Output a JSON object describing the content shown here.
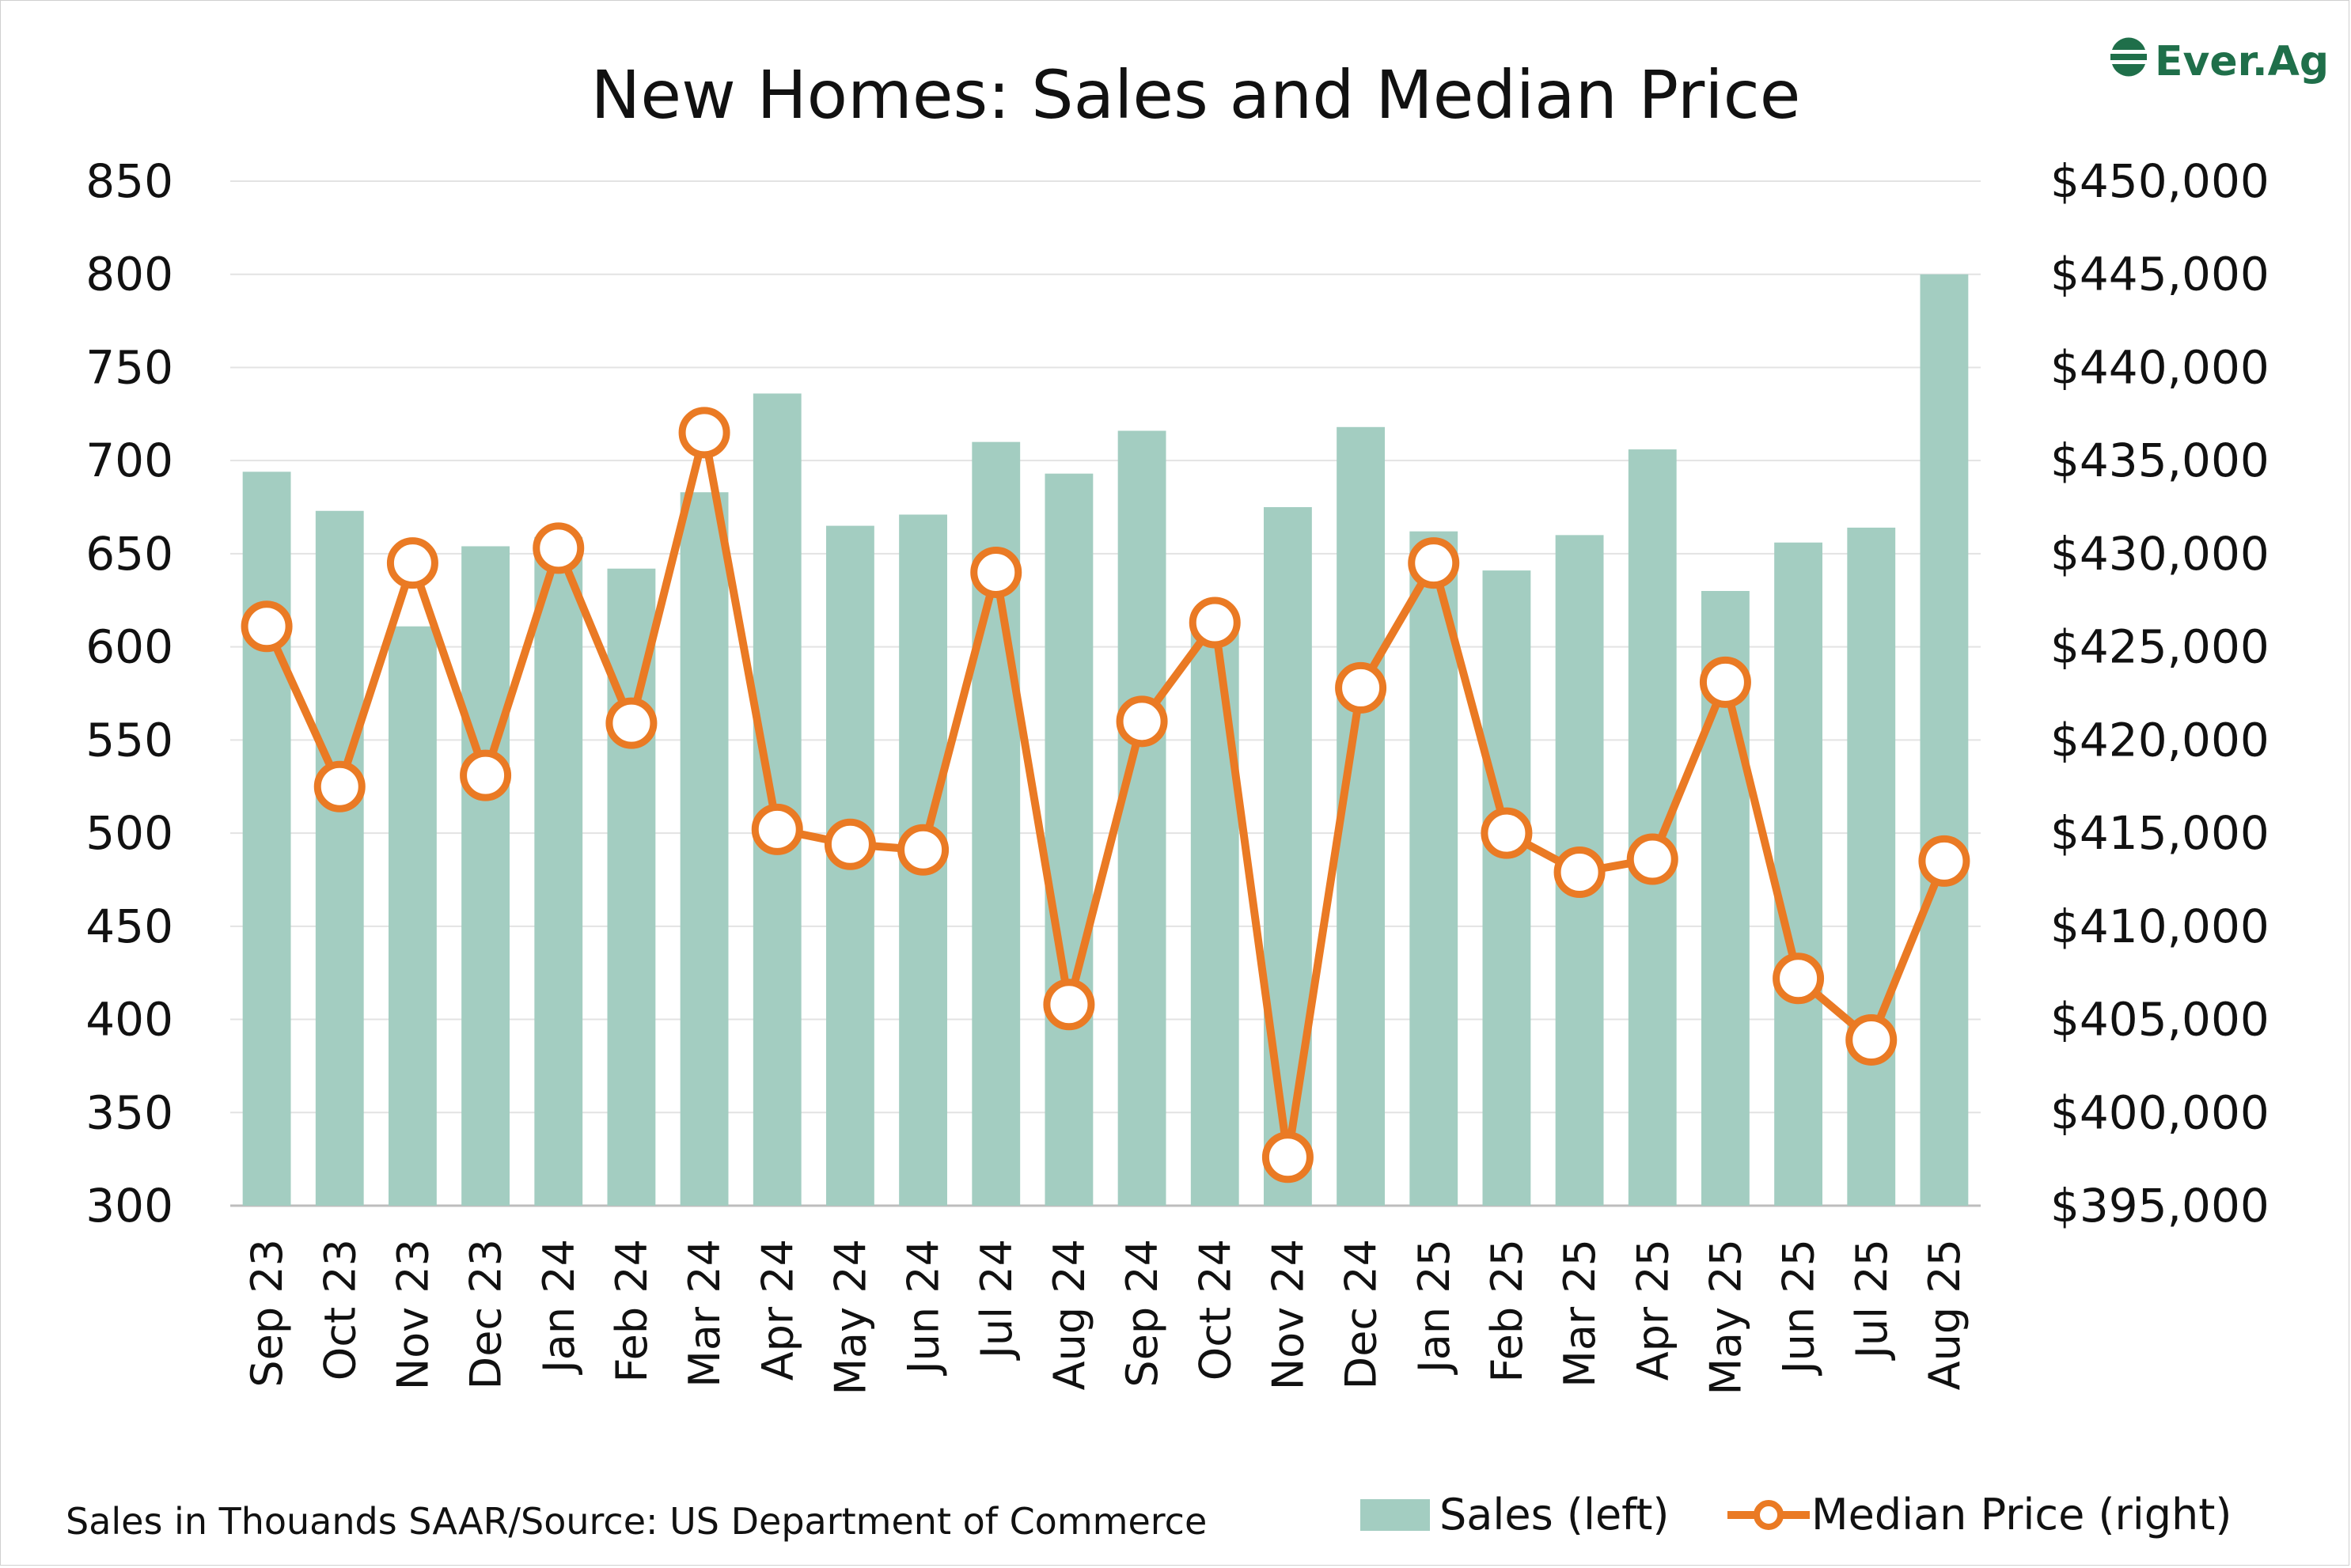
{
  "logo": {
    "text": "Ever.Ag",
    "color": "#1f6f4a",
    "icon": "ever-ag-logo-icon"
  },
  "footnote": "Sales in Thouands SAAR/Source: US Department of Commerce",
  "colors": {
    "bars": "#a3cdc1",
    "line": "#ea7a24",
    "marker_fill": "#ffffff",
    "grid": "#e3e3e3"
  },
  "chart_data": {
    "type": "bar",
    "title": "New Homes: Sales and Median Price",
    "xlabel": "",
    "ylabel": "",
    "grid": true,
    "legend_position": "bottom-right",
    "categories": [
      "Sep 23",
      "Oct 23",
      "Nov 23",
      "Dec 23",
      "Jan 24",
      "Feb 24",
      "Mar 24",
      "Apr 24",
      "May 24",
      "Jun 24",
      "Jul 24",
      "Aug 24",
      "Sep 24",
      "Oct 24",
      "Nov 24",
      "Dec 24",
      "Jan 25",
      "Feb 25",
      "Mar 25",
      "Apr 25",
      "May 25",
      "Jun 25",
      "Jul 25",
      "Aug 25"
    ],
    "ylim_left": [
      300,
      850
    ],
    "yticks_left": [
      "850",
      "800",
      "750",
      "700",
      "650",
      "600",
      "550",
      "500",
      "450",
      "400",
      "350",
      "300"
    ],
    "ylim_right": [
      395000,
      450000
    ],
    "yticks_right": [
      "$450,000",
      "$445,000",
      "$440,000",
      "$435,000",
      "$430,000",
      "$425,000",
      "$420,000",
      "$415,000",
      "$410,000",
      "$405,000",
      "$400,000",
      "$395,000"
    ],
    "series": [
      {
        "name": "Sales (left)",
        "type": "bar",
        "axis": "left",
        "values": [
          694,
          673,
          611,
          654,
          659,
          642,
          683,
          736,
          665,
          671,
          710,
          693,
          716,
          610,
          675,
          718,
          662,
          641,
          660,
          706,
          630,
          656,
          664,
          800
        ]
      },
      {
        "name": "Median Price (right)",
        "type": "line",
        "axis": "right",
        "values": [
          426100,
          417500,
          429500,
          418100,
          430300,
          420900,
          436500,
          415200,
          414400,
          414100,
          429000,
          405800,
          421000,
          426300,
          397600,
          422800,
          429500,
          415000,
          412900,
          413600,
          423100,
          407200,
          403900,
          413500
        ]
      }
    ]
  }
}
